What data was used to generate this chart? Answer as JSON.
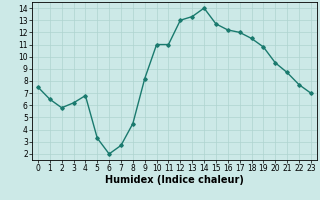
{
  "x": [
    0,
    1,
    2,
    3,
    4,
    5,
    6,
    7,
    8,
    9,
    10,
    11,
    12,
    13,
    14,
    15,
    16,
    17,
    18,
    19,
    20,
    21,
    22,
    23
  ],
  "y": [
    7.5,
    6.5,
    5.8,
    6.2,
    6.8,
    3.3,
    2.0,
    2.7,
    4.5,
    8.2,
    11.0,
    11.0,
    13.0,
    13.3,
    14.0,
    12.7,
    12.2,
    12.0,
    11.5,
    10.8,
    9.5,
    8.7,
    7.7,
    7.0
  ],
  "line_color": "#1a7a6e",
  "marker": "D",
  "marker_size": 1.8,
  "bg_color": "#cce9e7",
  "grid_color": "#afd4d0",
  "xlabel": "Humidex (Indice chaleur)",
  "xlabel_fontsize": 7,
  "xlim": [
    -0.5,
    23.5
  ],
  "ylim": [
    1.5,
    14.5
  ],
  "xticks": [
    0,
    1,
    2,
    3,
    4,
    5,
    6,
    7,
    8,
    9,
    10,
    11,
    12,
    13,
    14,
    15,
    16,
    17,
    18,
    19,
    20,
    21,
    22,
    23
  ],
  "yticks": [
    2,
    3,
    4,
    5,
    6,
    7,
    8,
    9,
    10,
    11,
    12,
    13,
    14
  ],
  "tick_fontsize": 5.5,
  "linewidth": 1.0
}
